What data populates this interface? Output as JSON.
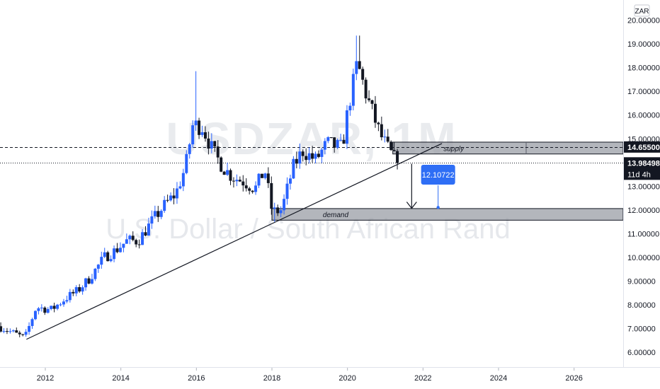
{
  "chart_data": {
    "type": "candlestick",
    "title": "",
    "watermark": {
      "symbol": "USDZAR, 1M",
      "description": "U.S. Dollar / South African Rand"
    },
    "currency_badge": "ZAR",
    "x_ticks": [
      "2012",
      "2014",
      "2016",
      "2018",
      "2020",
      "2022",
      "2024",
      "2026"
    ],
    "y_ticks": [
      "6.00000",
      "7.00000",
      "8.00000",
      "9.00000",
      "10.00000",
      "11.00000",
      "12.00000",
      "13.00000",
      "14.00000",
      "15.00000",
      "16.00000",
      "17.00000",
      "18.00000",
      "19.00000",
      "20.00000"
    ],
    "xlim": [
      2010.8,
      2027.3
    ],
    "ylim": [
      5.35,
      20.85
    ],
    "colors": {
      "up": "#2962ff",
      "down": "#131722",
      "price_tag": "#131722",
      "target_tag": "#2e6ef5",
      "zone": "#9a9ea6"
    },
    "zones": [
      {
        "name": "supply",
        "label": "supply",
        "top": 14.86,
        "bottom": 14.36,
        "from": 2021.2
      },
      {
        "name": "demand",
        "label": "demand",
        "top": 12.06,
        "bottom": 11.57,
        "from": 2018.0
      }
    ],
    "trendline": {
      "from": [
        2011.5,
        6.55
      ],
      "to": [
        2022.5,
        14.8
      ]
    },
    "horizontal_lines": [
      {
        "name": "supply-level",
        "value": 14.655,
        "style": "dashed"
      },
      {
        "name": "current-price",
        "value": 13.98498,
        "style": "dotted"
      }
    ],
    "price_tags": [
      {
        "name": "supply-price",
        "text": "14.65500",
        "value": 14.655
      },
      {
        "name": "current-price",
        "text": "13.98498",
        "value": 13.98498,
        "countdown": "11d 4h"
      }
    ],
    "target": {
      "text": "12.10722",
      "value": 12.10722,
      "x": 2022.4
    },
    "projection_arrow": {
      "x": 2021.7,
      "from": 13.95,
      "to": 12.07
    },
    "anchors": [
      [
        2010.8,
        7.1
      ],
      [
        2011.5,
        6.6
      ],
      [
        2011.8,
        7.9
      ],
      [
        2012.2,
        7.8
      ],
      [
        2012.6,
        8.3
      ],
      [
        2012.9,
        8.6
      ],
      [
        2013.2,
        9.1
      ],
      [
        2013.6,
        10.0
      ],
      [
        2013.9,
        10.3
      ],
      [
        2014.2,
        10.7
      ],
      [
        2014.5,
        10.7
      ],
      [
        2014.9,
        11.6
      ],
      [
        2015.2,
        12.2
      ],
      [
        2015.5,
        12.7
      ],
      [
        2015.75,
        13.8
      ],
      [
        2015.95,
        15.6
      ],
      [
        2016.2,
        15.5
      ],
      [
        2016.5,
        14.4
      ],
      [
        2016.8,
        13.7
      ],
      [
        2017.0,
        13.4
      ],
      [
        2017.3,
        13.2
      ],
      [
        2017.6,
        12.9
      ],
      [
        2017.85,
        13.7
      ],
      [
        2018.05,
        11.9
      ],
      [
        2018.3,
        12.0
      ],
      [
        2018.6,
        13.8
      ],
      [
        2018.85,
        14.5
      ],
      [
        2019.2,
        14.1
      ],
      [
        2019.5,
        14.8
      ],
      [
        2019.9,
        14.6
      ],
      [
        2020.05,
        16.2
      ],
      [
        2020.3,
        18.2
      ],
      [
        2020.55,
        16.8
      ],
      [
        2020.9,
        15.2
      ],
      [
        2021.1,
        14.6
      ],
      [
        2021.35,
        13.98
      ]
    ]
  }
}
